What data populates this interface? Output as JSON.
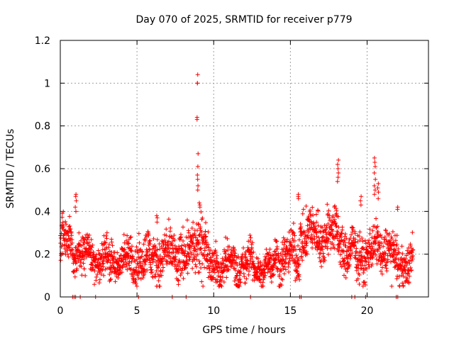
{
  "chart_data": {
    "type": "scatter",
    "title": "Day 070 of 2025, SRMTID for receiver p779",
    "xlabel": "GPS time / hours",
    "ylabel": "SRMTID / TECUs",
    "xlim": [
      0,
      24
    ],
    "ylim": [
      0,
      1.2
    ],
    "x_ticks": [
      0,
      5,
      10,
      15,
      20
    ],
    "x_tick_labels": [
      "0",
      "5",
      "10",
      "15",
      "20"
    ],
    "y_ticks": [
      0,
      0.2,
      0.4,
      0.6,
      0.8,
      1.0,
      1.2
    ],
    "y_tick_labels": [
      "0",
      "0.2",
      "0.4",
      "0.6",
      "0.8",
      "1",
      "1.2"
    ],
    "grid": true,
    "marker": "+",
    "series_color": "#ff0000",
    "segments": [
      {
        "t0": 0.0,
        "t1": 0.8,
        "base": 0.25,
        "spread": 0.08
      },
      {
        "t0": 0.8,
        "t1": 2.3,
        "base": 0.2,
        "spread": 0.07
      },
      {
        "t0": 2.3,
        "t1": 4.6,
        "base": 0.17,
        "spread": 0.07
      },
      {
        "t0": 4.6,
        "t1": 6.2,
        "base": 0.18,
        "spread": 0.08
      },
      {
        "t0": 6.2,
        "t1": 7.4,
        "base": 0.19,
        "spread": 0.09
      },
      {
        "t0": 7.4,
        "t1": 8.6,
        "base": 0.2,
        "spread": 0.09
      },
      {
        "t0": 8.6,
        "t1": 9.5,
        "base": 0.25,
        "spread": 0.12
      },
      {
        "t0": 9.5,
        "t1": 12.5,
        "base": 0.15,
        "spread": 0.07
      },
      {
        "t0": 12.5,
        "t1": 14.0,
        "base": 0.14,
        "spread": 0.06
      },
      {
        "t0": 14.0,
        "t1": 15.6,
        "base": 0.19,
        "spread": 0.08
      },
      {
        "t0": 15.6,
        "t1": 18.4,
        "base": 0.29,
        "spread": 0.09
      },
      {
        "t0": 18.4,
        "t1": 20.4,
        "base": 0.2,
        "spread": 0.08
      },
      {
        "t0": 20.4,
        "t1": 21.6,
        "base": 0.23,
        "spread": 0.08
      },
      {
        "t0": 21.6,
        "t1": 23.0,
        "base": 0.16,
        "spread": 0.07
      }
    ],
    "spikes": [
      {
        "x": 1.0,
        "y": [
          0.48,
          0.47,
          0.45,
          0.42,
          0.4
        ]
      },
      {
        "x": 6.3,
        "y": [
          0.38,
          0.37,
          0.35
        ]
      },
      {
        "x": 8.95,
        "y": [
          1.04,
          1.0,
          1.0,
          0.84,
          0.83,
          0.67,
          0.61,
          0.57,
          0.55,
          0.52,
          0.5
        ]
      },
      {
        "x": 9.1,
        "y": [
          0.44,
          0.43,
          0.42
        ]
      },
      {
        "x": 15.5,
        "y": [
          0.48,
          0.47,
          0.46
        ]
      },
      {
        "x": 18.1,
        "y": [
          0.64,
          0.62,
          0.6,
          0.58,
          0.56,
          0.54
        ]
      },
      {
        "x": 19.6,
        "y": [
          0.47,
          0.45,
          0.43
        ]
      },
      {
        "x": 20.5,
        "y": [
          0.65,
          0.63,
          0.61,
          0.58,
          0.55,
          0.52,
          0.5,
          0.48
        ]
      },
      {
        "x": 20.7,
        "y": [
          0.53,
          0.51,
          0.49,
          0.46
        ]
      },
      {
        "x": 22.0,
        "y": [
          0.42,
          0.41
        ]
      }
    ],
    "zero_points": [
      0.8,
      0.9,
      1.0,
      1.3,
      2.3,
      5.1,
      7.3,
      8.2,
      12.4,
      15.6,
      15.7,
      19.0,
      19.2,
      19.9,
      21.9,
      22.0
    ]
  }
}
